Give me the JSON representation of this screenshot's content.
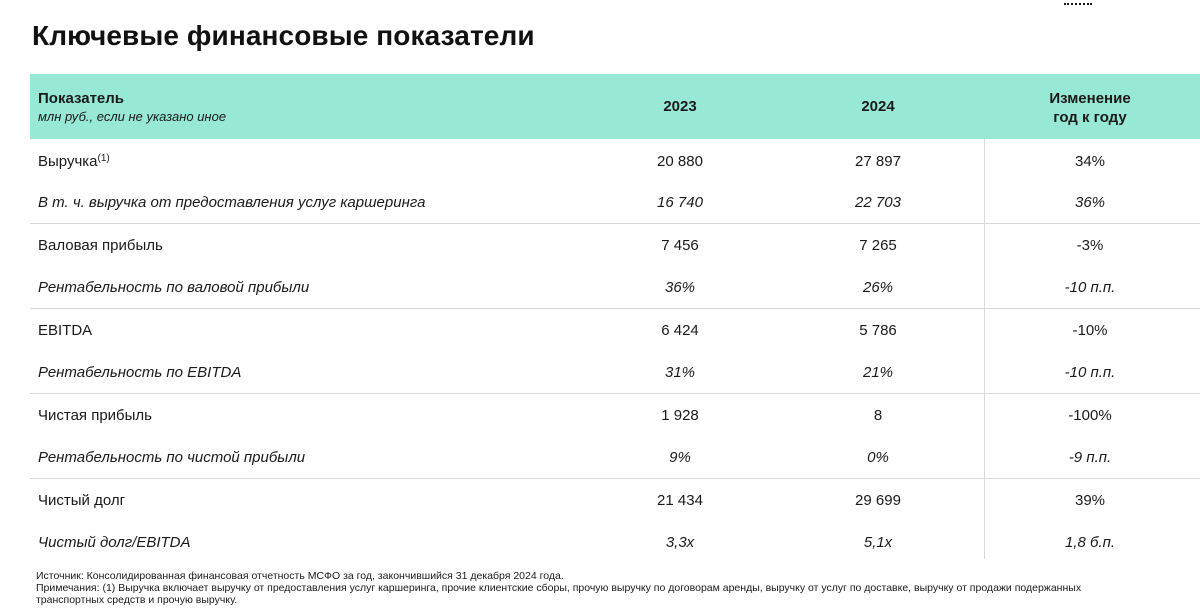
{
  "title": "Ключевые финансовые показатели",
  "table": {
    "header": {
      "indicator": "Показатель",
      "units_note": "млн руб., если не указано иное",
      "col_2023": "2023",
      "col_2024": "2024",
      "change_line1": "Изменение",
      "change_line2": "год к году"
    },
    "rows": [
      {
        "label": "Выручка",
        "sup": "(1)",
        "v2023": "20 880",
        "v2024": "27 897",
        "change": "34%",
        "italic": false
      },
      {
        "label": "В т. ч. выручка от предоставления услуг каршеринга",
        "v2023": "16 740",
        "v2024": "22 703",
        "change": "36%",
        "italic": true
      },
      {
        "label": "Валовая прибыль",
        "v2023": "7 456",
        "v2024": "7 265",
        "change": "-3%",
        "italic": false
      },
      {
        "label": "Рентабельность по валовой прибыли",
        "v2023": "36%",
        "v2024": "26%",
        "change": "-10 п.п.",
        "italic": true
      },
      {
        "label": "EBITDA",
        "v2023": "6 424",
        "v2024": "5 786",
        "change": "-10%",
        "italic": false
      },
      {
        "label": "Рентабельность по EBITDA",
        "v2023": "31%",
        "v2024": "21%",
        "change": "-10 п.п.",
        "italic": true
      },
      {
        "label": "Чистая прибыль",
        "v2023": "1 928",
        "v2024": "8",
        "change": "-100%",
        "italic": false
      },
      {
        "label": "Рентабельность по чистой прибыли",
        "v2023": "9%",
        "v2024": "0%",
        "change": "-9 п.п.",
        "italic": true
      },
      {
        "label": "Чистый долг",
        "v2023": "21 434",
        "v2024": "29 699",
        "change": "39%",
        "italic": false
      },
      {
        "label": "Чистый долг/EBITDA",
        "v2023": "3,3x",
        "v2024": "5,1x",
        "change": "1,8 б.п.",
        "italic": true
      }
    ]
  },
  "footnotes": {
    "source": "Источник: Консолидированная финансовая отчетность МСФО за год, закончившийся 31 декабря 2024 года.",
    "note": "Примечания: (1) Выручка включает выручку от предоставления услуг каршеринга, прочие клиентские сборы, прочую выручку по договорам аренды, выручку от услуг по доставке,  выручку от продажи подержанных транспортных средств и прочую выручку."
  },
  "colors": {
    "header_bg": "#97e8d4",
    "divider": "#d9d9d9"
  }
}
